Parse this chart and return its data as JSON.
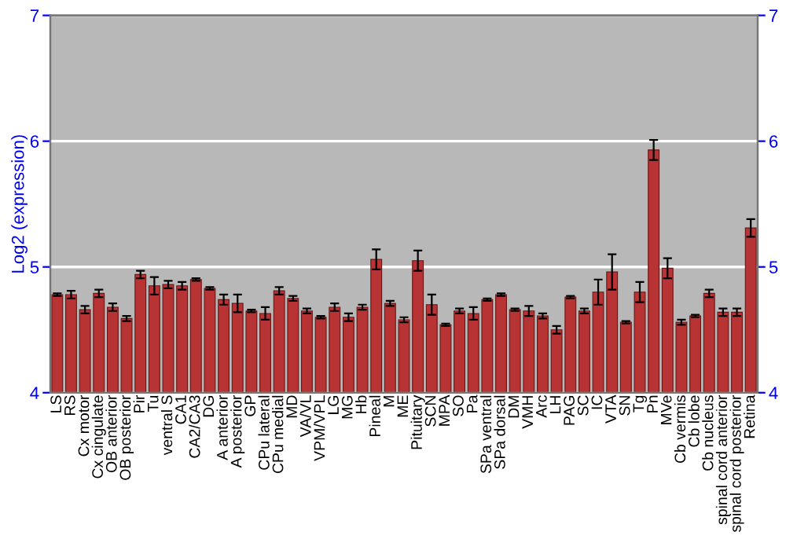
{
  "chart_data": {
    "type": "bar",
    "ylabel": "Log2 (expression)",
    "categories": [
      "LS",
      "RS",
      "Cx motor",
      "Cx cingulate",
      "OB anterior",
      "OB posterior",
      "Pir",
      "Tu",
      "ventral S",
      "CA1",
      "CA2/CA3",
      "DG",
      "A anterior",
      "A posterior",
      "GP",
      "CPu lateral",
      "CPu medial",
      "MD",
      "VA/VL",
      "VPM/VPL",
      "LG",
      "MG",
      "Hb",
      "Pineal",
      "M",
      "ME",
      "Pituitary",
      "SCN",
      "MPA",
      "SO",
      "Pa",
      "SPa ventral",
      "SPa dorsal",
      "DM",
      "VMH",
      "Arc",
      "LH",
      "PAG",
      "SC",
      "IC",
      "VTA",
      "SN",
      "Tg",
      "Pn",
      "MVe",
      "Cb vermis",
      "Cb lobe",
      "Cb nucleus",
      "spinal cord anterior",
      "spinal cord posterior",
      "Retina"
    ],
    "values": [
      4.78,
      4.78,
      4.66,
      4.79,
      4.68,
      4.59,
      4.94,
      4.85,
      4.86,
      4.85,
      4.9,
      4.83,
      4.74,
      4.71,
      4.65,
      4.63,
      4.81,
      4.75,
      4.65,
      4.6,
      4.68,
      4.6,
      4.68,
      5.06,
      4.71,
      4.58,
      5.05,
      4.7,
      4.54,
      4.65,
      4.63,
      4.74,
      4.78,
      4.66,
      4.65,
      4.61,
      4.5,
      4.76,
      4.65,
      4.8,
      4.96,
      4.56,
      4.8,
      5.93,
      4.99,
      4.56,
      4.61,
      4.79,
      4.64,
      4.64,
      5.31
    ],
    "errors": [
      0.01,
      0.03,
      0.03,
      0.03,
      0.03,
      0.02,
      0.03,
      0.07,
      0.03,
      0.03,
      0.01,
      0.01,
      0.04,
      0.07,
      0.01,
      0.05,
      0.03,
      0.02,
      0.02,
      0.01,
      0.03,
      0.03,
      0.02,
      0.08,
      0.02,
      0.02,
      0.08,
      0.08,
      0.01,
      0.02,
      0.05,
      0.01,
      0.01,
      0.01,
      0.04,
      0.02,
      0.03,
      0.01,
      0.02,
      0.1,
      0.14,
      0.01,
      0.08,
      0.08,
      0.08,
      0.02,
      0.01,
      0.03,
      0.03,
      0.03,
      0.07
    ],
    "color": "#b83434",
    "ylim": [
      4,
      7
    ],
    "yticks": [
      4,
      5,
      6,
      7
    ],
    "y2lim": [
      4,
      7
    ],
    "y2ticks": [
      4,
      5,
      6,
      7
    ],
    "grid": "y"
  }
}
